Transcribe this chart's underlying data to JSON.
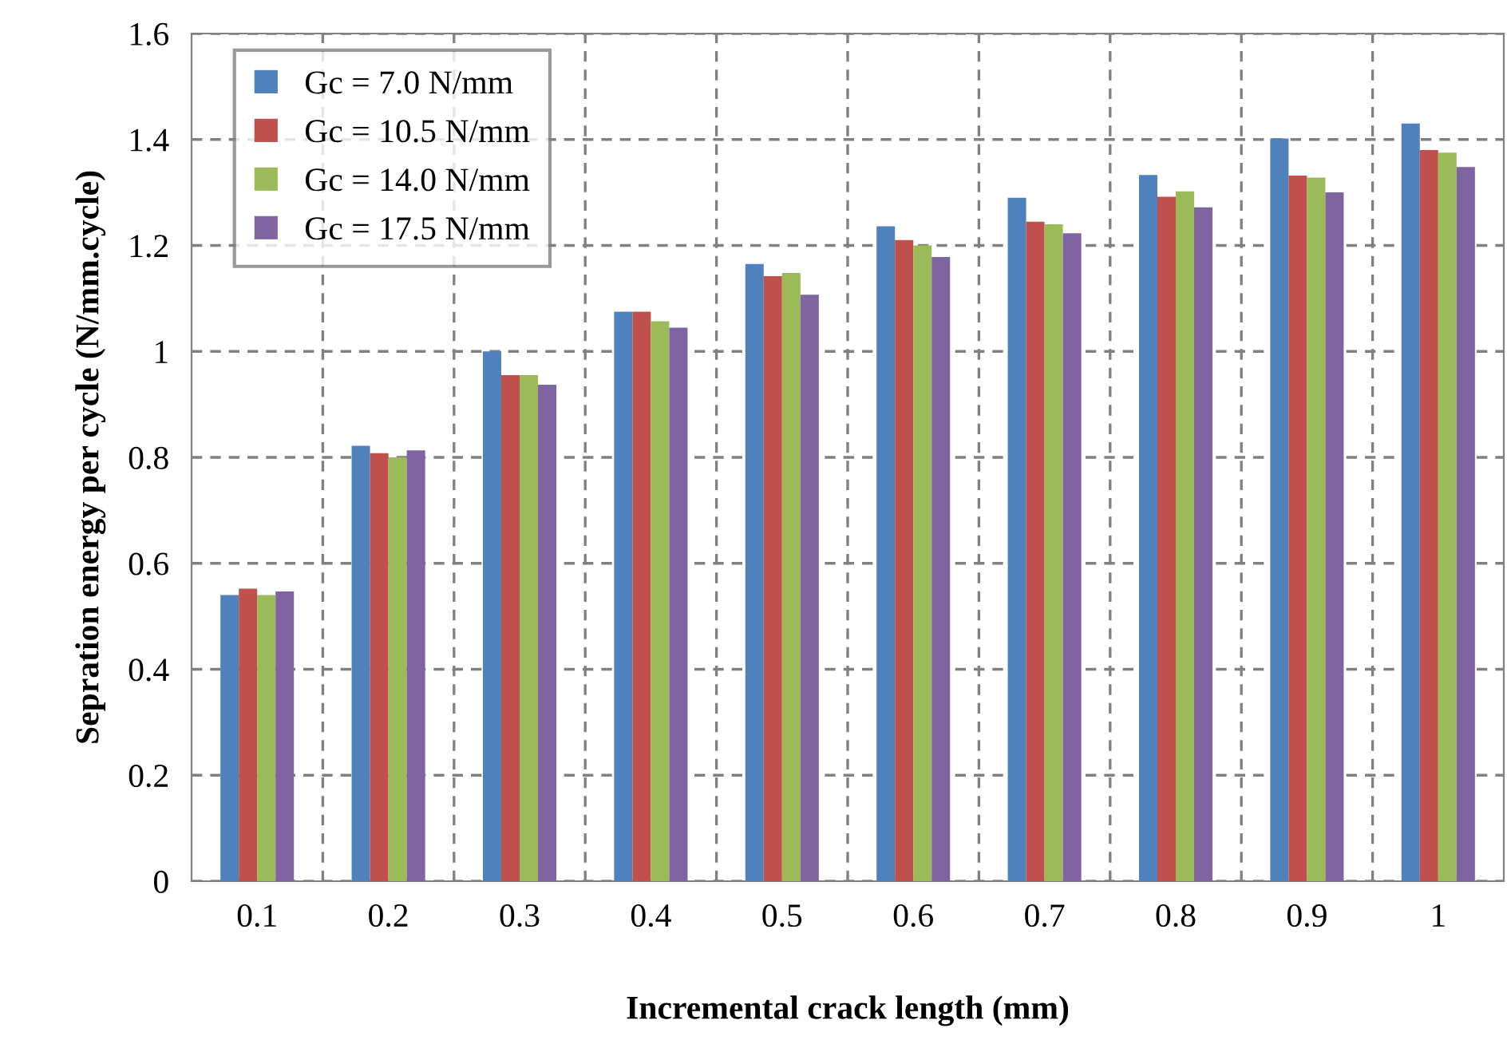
{
  "chart_data": {
    "type": "bar",
    "xlabel": "Incremental crack length (mm)",
    "ylabel": "Sepration energy per cycle (N/mm.cycle)",
    "categories": [
      "0.1",
      "0.2",
      "0.3",
      "0.4",
      "0.5",
      "0.6",
      "0.7",
      "0.8",
      "0.9",
      "1"
    ],
    "series": [
      {
        "name": "Gc = 7.0 N/mm",
        "color": "#4f81bd",
        "values": [
          0.54,
          0.822,
          1.0,
          1.075,
          1.165,
          1.236,
          1.29,
          1.333,
          1.402,
          1.43
        ]
      },
      {
        "name": "Gc = 10.5 N/mm",
        "color": "#c0504d",
        "values": [
          0.552,
          0.808,
          0.955,
          1.075,
          1.142,
          1.21,
          1.245,
          1.292,
          1.332,
          1.38
        ]
      },
      {
        "name": "Gc = 14.0 N/mm",
        "color": "#9bbb59",
        "values": [
          0.54,
          0.8,
          0.955,
          1.057,
          1.148,
          1.2,
          1.24,
          1.302,
          1.328,
          1.375
        ]
      },
      {
        "name": "Gc = 17.5 N/mm",
        "color": "#8064a2",
        "values": [
          0.547,
          0.813,
          0.937,
          1.045,
          1.107,
          1.178,
          1.223,
          1.272,
          1.3,
          1.348
        ]
      }
    ],
    "ylim": [
      0,
      1.6
    ],
    "yticks": [
      0,
      {
        "value": 0.2,
        "label": "0.2"
      },
      {
        "value": 0.4,
        "label": "0.4"
      },
      {
        "value": 0.6,
        "label": "0.6"
      },
      {
        "value": 0.8,
        "label": "0.8"
      },
      1,
      {
        "value": 1.2,
        "label": "1.2"
      },
      {
        "value": 1.4,
        "label": "1.4"
      },
      {
        "value": 1.6,
        "label": "1.6"
      }
    ],
    "grid": true,
    "legend": "top left"
  }
}
